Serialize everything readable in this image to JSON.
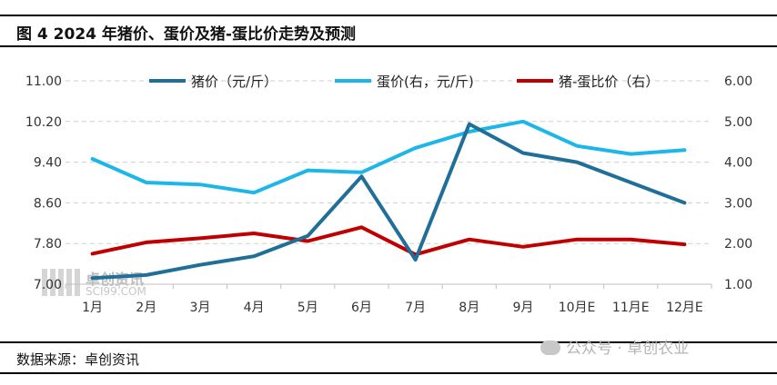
{
  "header": {
    "title": "图 4 2024 年猪价、蛋价及猪-蛋比价走势及预测"
  },
  "footer": {
    "source": "数据来源：卓创资讯"
  },
  "watermark": {
    "text": "公众号 · 卓创农业",
    "logo_text": "卓创资讯",
    "logo_url": "SCI99.COM"
  },
  "chart_data": {
    "type": "line",
    "title": "",
    "categories": [
      "1月",
      "2月",
      "3月",
      "4月",
      "5月",
      "6月",
      "7月",
      "8月",
      "9月",
      "10月E",
      "11月E",
      "12月E"
    ],
    "y_left": {
      "ticks": [
        "11.00",
        "10.20",
        "9.40",
        "8.60",
        "7.80",
        "7.00"
      ],
      "min": 7.0,
      "max": 11.0
    },
    "y_right": {
      "ticks": [
        "6.00",
        "5.00",
        "4.00",
        "3.00",
        "2.00",
        "1.00"
      ],
      "min": 1.0,
      "max": 6.0
    },
    "grid": "horizontal dashed",
    "legend_position": "top",
    "series": [
      {
        "name": "猪价（元/斤）",
        "axis": "left",
        "color": "#1F6F99",
        "values": [
          7.12,
          7.18,
          7.38,
          7.55,
          7.95,
          9.12,
          7.48,
          10.15,
          9.58,
          9.4,
          9.0,
          8.6
        ]
      },
      {
        "name": "蛋价(右，元/斤)",
        "axis": "right",
        "color": "#1CB6E8",
        "values": [
          4.08,
          3.5,
          3.45,
          3.25,
          3.8,
          3.75,
          4.35,
          4.75,
          5.0,
          4.4,
          4.2,
          4.3
        ]
      },
      {
        "name": "猪-蛋比价（右）",
        "axis": "right",
        "color": "#C00000",
        "values": [
          1.75,
          2.03,
          2.13,
          2.25,
          2.06,
          2.4,
          1.73,
          2.1,
          1.92,
          2.1,
          2.1,
          1.98
        ]
      }
    ]
  }
}
